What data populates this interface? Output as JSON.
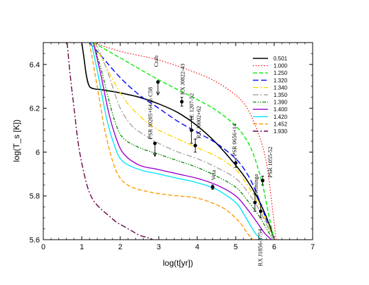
{
  "chart_data": {
    "type": "line",
    "xlabel": "log(t[yr])",
    "ylabel": "log(T_s [K])",
    "xlim": [
      0,
      7
    ],
    "ylim": [
      5.6,
      6.5
    ],
    "xticks": [
      "0",
      "1",
      "2",
      "3",
      "4",
      "5",
      "6",
      "7"
    ],
    "yticks": [
      "5.6",
      "5.8",
      "6",
      "6.2",
      "6.4"
    ],
    "legend": "top-right",
    "grid": false,
    "series": [
      {
        "name": "0.501",
        "color": "#000000",
        "dash": "",
        "width": 1.6,
        "x": [
          1.0,
          1.05,
          1.12,
          1.2,
          1.35,
          1.5,
          2.0,
          2.5,
          3.0,
          3.5,
          4.0,
          4.5,
          5.0,
          5.3,
          5.6,
          5.85,
          6.0
        ],
        "y": [
          6.5,
          6.44,
          6.35,
          6.3,
          6.288,
          6.285,
          6.27,
          6.25,
          6.22,
          6.18,
          6.12,
          6.04,
          5.94,
          5.87,
          5.78,
          5.68,
          5.6
        ]
      },
      {
        "name": "1.000",
        "color": "#ff0000",
        "dash": "1.5,2.5",
        "width": 1.2,
        "x": [
          1.3,
          2.0,
          3.0,
          4.0,
          4.5,
          5.0,
          5.3,
          5.6,
          5.8,
          5.95,
          6.05
        ],
        "y": [
          6.5,
          6.46,
          6.42,
          6.36,
          6.32,
          6.26,
          6.2,
          6.08,
          5.95,
          5.75,
          5.6
        ]
      },
      {
        "name": "1.250",
        "color": "#00ee00",
        "dash": "6,3",
        "width": 1.4,
        "x": [
          1.3,
          2.0,
          3.0,
          4.0,
          4.5,
          5.0,
          5.3,
          5.5,
          5.7,
          5.85,
          6.0
        ],
        "y": [
          6.5,
          6.43,
          6.33,
          6.24,
          6.19,
          6.12,
          6.05,
          5.97,
          5.85,
          5.72,
          5.6
        ]
      },
      {
        "name": "1.320",
        "color": "#0000ff",
        "dash": "8,4",
        "width": 1.4,
        "x": [
          1.2,
          1.5,
          2.0,
          2.5,
          3.0,
          3.5,
          4.0,
          4.5,
          5.0,
          5.3,
          5.5,
          5.7,
          5.85,
          6.0
        ],
        "y": [
          6.5,
          6.44,
          6.34,
          6.26,
          6.2,
          6.14,
          6.09,
          6.04,
          5.97,
          5.9,
          5.83,
          5.74,
          5.66,
          5.6
        ]
      },
      {
        "name": "1.340",
        "color": "#ffd700",
        "dash": "8,3,2,3",
        "width": 1.4,
        "x": [
          1.3,
          1.6,
          1.9,
          2.2,
          2.6,
          3.0,
          3.5,
          4.0,
          4.5,
          5.0,
          5.3,
          5.6,
          5.8,
          6.0
        ],
        "y": [
          6.5,
          6.4,
          6.3,
          6.22,
          6.15,
          6.1,
          6.06,
          6.02,
          5.98,
          5.92,
          5.85,
          5.76,
          5.68,
          5.6
        ]
      },
      {
        "name": "1.350",
        "color": "#b0a0a0",
        "dash": "8,3,2,3",
        "width": 1.4,
        "x": [
          1.35,
          1.6,
          1.8,
          2.0,
          2.3,
          2.7,
          3.0,
          3.5,
          4.0,
          4.5,
          5.0,
          5.3,
          5.6,
          5.8,
          6.0
        ],
        "y": [
          6.5,
          6.4,
          6.3,
          6.2,
          6.12,
          6.07,
          6.04,
          6.0,
          5.97,
          5.93,
          5.88,
          5.82,
          5.74,
          5.67,
          5.6
        ]
      },
      {
        "name": "1.390",
        "color": "#008800",
        "dash": "5,2,1.5,2,1.5,2",
        "width": 1.3,
        "x": [
          1.3,
          1.5,
          1.7,
          1.9,
          2.1,
          2.5,
          3.0,
          3.5,
          4.0,
          4.5,
          5.0,
          5.3,
          5.6,
          5.8,
          5.97
        ],
        "y": [
          6.5,
          6.38,
          6.24,
          6.12,
          6.06,
          6.02,
          5.99,
          5.96,
          5.93,
          5.89,
          5.84,
          5.78,
          5.71,
          5.65,
          5.6
        ]
      },
      {
        "name": "1.400",
        "color": "#9900cc",
        "dash": "",
        "width": 1.4,
        "x": [
          1.3,
          1.5,
          1.7,
          1.9,
          2.1,
          2.5,
          3.0,
          3.5,
          4.0,
          4.5,
          5.0,
          5.3,
          5.55,
          5.75,
          5.93
        ],
        "y": [
          6.5,
          6.35,
          6.18,
          6.06,
          5.99,
          5.94,
          5.92,
          5.9,
          5.88,
          5.85,
          5.8,
          5.74,
          5.68,
          5.63,
          5.6
        ]
      },
      {
        "name": "1.420",
        "color": "#00e5ff",
        "dash": "",
        "width": 1.4,
        "x": [
          1.25,
          1.45,
          1.65,
          1.85,
          2.05,
          2.5,
          3.0,
          3.5,
          4.0,
          4.5,
          5.0,
          5.2,
          5.4,
          5.55,
          5.68
        ],
        "y": [
          6.5,
          6.33,
          6.15,
          6.03,
          5.96,
          5.92,
          5.9,
          5.88,
          5.86,
          5.83,
          5.77,
          5.72,
          5.66,
          5.62,
          5.6
        ]
      },
      {
        "name": "1.452",
        "color": "#ff9900",
        "dash": "6,3",
        "width": 1.4,
        "x": [
          1.2,
          1.4,
          1.6,
          1.8,
          2.0,
          2.3,
          2.7,
          3.0,
          3.5,
          4.0,
          4.5,
          4.8,
          5.1,
          5.3,
          5.45
        ],
        "y": [
          6.5,
          6.3,
          6.1,
          5.96,
          5.88,
          5.84,
          5.82,
          5.81,
          5.8,
          5.79,
          5.76,
          5.73,
          5.68,
          5.63,
          5.6
        ]
      },
      {
        "name": "1.930",
        "color": "#660044",
        "dash": "8,3,2,3",
        "width": 1.4,
        "x": [
          0.62,
          0.7,
          0.8,
          0.9,
          1.0,
          1.15,
          1.3,
          1.5,
          1.7,
          1.9,
          2.1,
          2.3,
          2.5,
          2.7,
          2.85
        ],
        "y": [
          6.5,
          6.35,
          6.2,
          6.05,
          5.95,
          5.84,
          5.78,
          5.74,
          5.71,
          5.68,
          5.66,
          5.64,
          5.62,
          5.61,
          5.6
        ]
      }
    ],
    "observations": [
      {
        "name": "Crab",
        "x": 2.98,
        "y": 6.32,
        "type": "upper_limit"
      },
      {
        "name": "RX J0822-43",
        "x": 3.6,
        "y": 6.23,
        "yerr_low": 0.02,
        "yerr_high": 0.02
      },
      {
        "name": "PSR J0205+64 in C58",
        "x": 2.9,
        "y": 6.04,
        "type": "upper_limit"
      },
      {
        "name": "1E 1207-52",
        "x": 3.85,
        "y": 6.1,
        "yerr_low": 0.06,
        "yerr_high": 0.06
      },
      {
        "name": "RX J0002+62",
        "x": 3.95,
        "y": 6.03,
        "yerr_low": 0.03,
        "yerr_high": 0.03
      },
      {
        "name": "Vela",
        "x": 4.4,
        "y": 5.84,
        "yerr_low": 0.01,
        "yerr_high": 0.01
      },
      {
        "name": "PSR 0656+14",
        "x": 5.0,
        "y": 5.95,
        "yerr_low": 0.02,
        "yerr_high": 0.02
      },
      {
        "name": "Geminga",
        "x": 5.5,
        "y": 5.77,
        "yerr_low": 0.04,
        "yerr_high": 0.04
      },
      {
        "name": "PSR 1055-52",
        "x": 5.7,
        "y": 5.87,
        "yerr_low": 0.02,
        "yerr_high": 0.02
      },
      {
        "name": "RX J1856-3754",
        "x": 5.65,
        "y": 5.73,
        "yerr_low": 0.03,
        "yerr_high": 0.03
      }
    ]
  }
}
